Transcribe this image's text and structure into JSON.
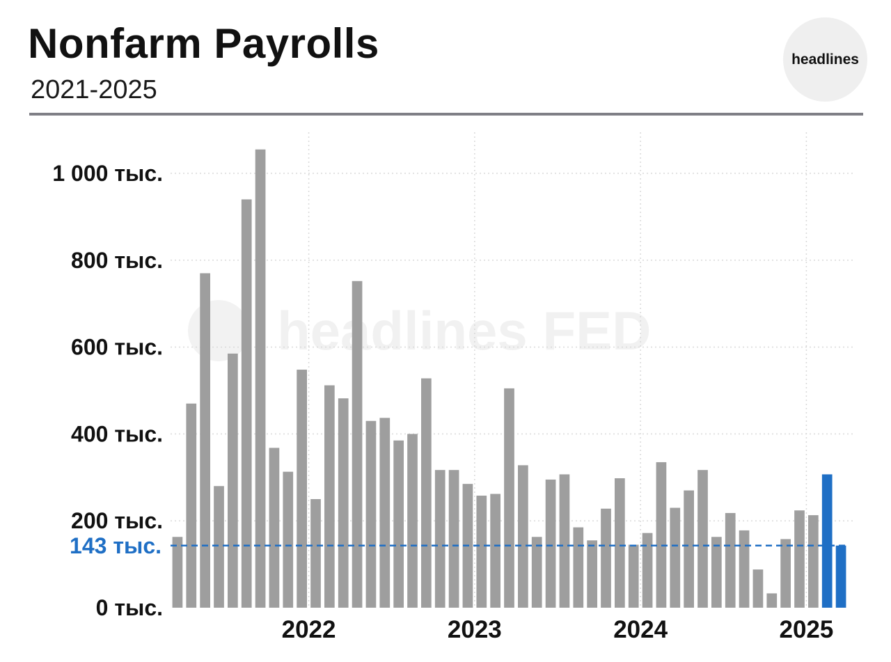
{
  "header": {
    "title": "Nonfarm Payrolls",
    "subtitle": "2021-2025",
    "logo_text": "headlines"
  },
  "watermark": {
    "text": "headlines FED",
    "icon": "headlines-logo-icon"
  },
  "colors": {
    "bar": "#9e9e9e",
    "highlight": "#1f6fc5",
    "grid": "#d9d9d9",
    "rule": "#7f7f86"
  },
  "chart_data": {
    "type": "bar",
    "title": "Nonfarm Payrolls",
    "subtitle": "2021-2025",
    "xlabel": "",
    "ylabel": "",
    "ylim": [
      0,
      1080
    ],
    "y_ticks": [
      {
        "value": 0,
        "label": "0 тыс."
      },
      {
        "value": 200,
        "label": "200 тыс."
      },
      {
        "value": 400,
        "label": "400 тыс."
      },
      {
        "value": 600,
        "label": "600 тыс."
      },
      {
        "value": 800,
        "label": "800 тыс."
      },
      {
        "value": 1000,
        "label": "1 000 тыс."
      }
    ],
    "x_ticks": [
      {
        "label": "2022",
        "at_index": 9.5
      },
      {
        "label": "2023",
        "at_index": 21.5
      },
      {
        "label": "2024",
        "at_index": 33.5
      },
      {
        "label": "2025",
        "at_index": 45.5
      }
    ],
    "grid": true,
    "values": [
      163,
      470,
      770,
      280,
      585,
      940,
      1055,
      368,
      313,
      548,
      250,
      512,
      482,
      752,
      430,
      437,
      385,
      400,
      528,
      317,
      317,
      285,
      258,
      262,
      505,
      328,
      163,
      295,
      307,
      185,
      155,
      228,
      298,
      145,
      172,
      335,
      230,
      270,
      317,
      163,
      218,
      178,
      88,
      33,
      158,
      224,
      213,
      307,
      143
    ],
    "highlight_indices": [
      47,
      48
    ],
    "reference_line": {
      "value": 143,
      "label": "143 тыс."
    },
    "legend": "none"
  }
}
